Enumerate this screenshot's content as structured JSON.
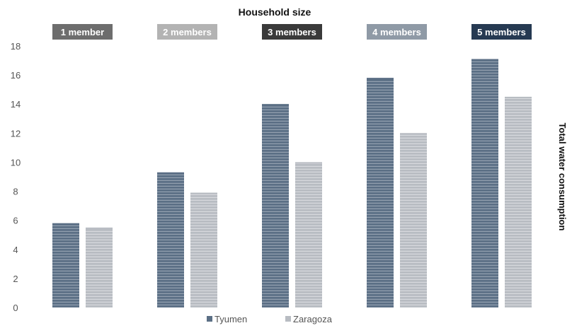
{
  "chart_data": {
    "type": "bar",
    "title": "Household size",
    "xlabel": "",
    "ylabel": "Total water consumption",
    "categories": [
      "1 member",
      "2 members",
      "3 members",
      "4 members",
      "5 members"
    ],
    "category_colors": [
      "#6d6d6d",
      "#b3b3b3",
      "#3a3a3a",
      "#8f9aa6",
      "#263a52"
    ],
    "series": [
      {
        "name": "Tyumen",
        "values": [
          5.8,
          9.3,
          14.0,
          15.8,
          17.1
        ],
        "color": "#5b6f85"
      },
      {
        "name": "Zaragoza",
        "values": [
          5.5,
          7.9,
          10.0,
          12.0,
          14.5
        ],
        "color": "#b8bcc2"
      }
    ],
    "ylim": [
      0,
      18
    ],
    "yticks": [
      0,
      2,
      4,
      6,
      8,
      10,
      12,
      14,
      16,
      18
    ],
    "grid": false,
    "legend": "bottom-center",
    "bar_texture": "horizontal-stripes"
  }
}
